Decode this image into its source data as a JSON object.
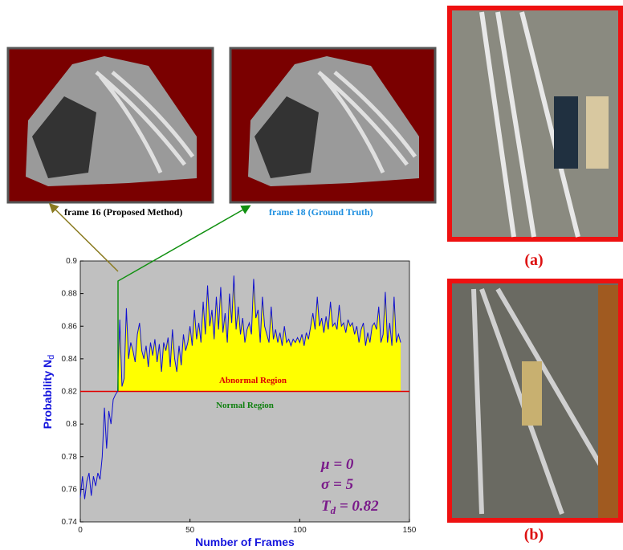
{
  "chart_data": {
    "type": "line",
    "xlabel": "Number of Frames",
    "ylabel": "Probability N",
    "ylabel_sub": "d",
    "x": [
      0,
      1,
      2,
      3,
      4,
      5,
      6,
      7,
      8,
      9,
      10,
      11,
      12,
      13,
      14,
      15,
      16,
      17,
      18,
      19,
      20,
      21,
      22,
      23,
      24,
      25,
      26,
      27,
      28,
      29,
      30,
      31,
      32,
      33,
      34,
      35,
      36,
      37,
      38,
      39,
      40,
      41,
      42,
      43,
      44,
      45,
      46,
      47,
      48,
      49,
      50,
      51,
      52,
      53,
      54,
      55,
      56,
      57,
      58,
      59,
      60,
      61,
      62,
      63,
      64,
      65,
      66,
      67,
      68,
      69,
      70,
      71,
      72,
      73,
      74,
      75,
      76,
      77,
      78,
      79,
      80,
      81,
      82,
      83,
      84,
      85,
      86,
      87,
      88,
      89,
      90,
      91,
      92,
      93,
      94,
      95,
      96,
      97,
      98,
      99,
      100,
      101,
      102,
      103,
      104,
      105,
      106,
      107,
      108,
      109,
      110,
      111,
      112,
      113,
      114,
      115,
      116,
      117,
      118,
      119,
      120,
      121,
      122,
      123,
      124,
      125,
      126,
      127,
      128,
      129,
      130,
      131,
      132,
      133,
      134,
      135,
      136,
      137,
      138,
      139,
      140,
      141,
      142,
      143,
      144,
      145,
      146
    ],
    "series": [
      {
        "color": "#1010d0",
        "fill": "#ffff00",
        "values": [
          0.755,
          0.768,
          0.754,
          0.765,
          0.77,
          0.756,
          0.768,
          0.762,
          0.77,
          0.766,
          0.78,
          0.81,
          0.785,
          0.808,
          0.8,
          0.815,
          0.818,
          0.82,
          0.864,
          0.823,
          0.828,
          0.871,
          0.84,
          0.85,
          0.845,
          0.838,
          0.855,
          0.862,
          0.845,
          0.84,
          0.848,
          0.835,
          0.85,
          0.842,
          0.852,
          0.838,
          0.849,
          0.832,
          0.85,
          0.845,
          0.853,
          0.835,
          0.858,
          0.84,
          0.832,
          0.848,
          0.836,
          0.855,
          0.845,
          0.85,
          0.86,
          0.848,
          0.87,
          0.852,
          0.862,
          0.85,
          0.875,
          0.855,
          0.885,
          0.86,
          0.87,
          0.852,
          0.878,
          0.858,
          0.884,
          0.856,
          0.868,
          0.85,
          0.88,
          0.862,
          0.891,
          0.858,
          0.872,
          0.855,
          0.865,
          0.85,
          0.858,
          0.862,
          0.855,
          0.889,
          0.865,
          0.87,
          0.85,
          0.878,
          0.86,
          0.855,
          0.85,
          0.872,
          0.852,
          0.858,
          0.85,
          0.856,
          0.848,
          0.86,
          0.85,
          0.852,
          0.848,
          0.852,
          0.85,
          0.853,
          0.85,
          0.855,
          0.848,
          0.856,
          0.852,
          0.86,
          0.868,
          0.858,
          0.878,
          0.86,
          0.865,
          0.856,
          0.866,
          0.858,
          0.875,
          0.86,
          0.862,
          0.858,
          0.873,
          0.86,
          0.862,
          0.856,
          0.864,
          0.86,
          0.862,
          0.855,
          0.86,
          0.85,
          0.858,
          0.862,
          0.848,
          0.856,
          0.85,
          0.86,
          0.862,
          0.858,
          0.872,
          0.85,
          0.855,
          0.881,
          0.85,
          0.862,
          0.848,
          0.878,
          0.85,
          0.855,
          0.85
        ]
      }
    ],
    "threshold": 0.82,
    "threshold_color": "#e00000",
    "abnormal_label": "Abnormal Region",
    "normal_label": "Normal Region",
    "params": [
      "μ = 0",
      "σ = 5"
    ],
    "threshold_symbol": "T",
    "threshold_sub": "d",
    "threshold_text": " = 0.82",
    "xlim": [
      0,
      150
    ],
    "xticks": [
      0,
      50,
      100,
      150
    ],
    "ylim": [
      0.74,
      0.9
    ],
    "yticks": [
      0.74,
      0.76,
      0.78,
      0.8,
      0.82,
      0.84,
      0.86,
      0.88,
      0.9
    ]
  },
  "frames": {
    "left_caption": "frame 16 (Proposed Method)",
    "right_caption": "frame 18 (Ground Truth)"
  },
  "panels": {
    "a": "(a)",
    "b": "(b)"
  }
}
